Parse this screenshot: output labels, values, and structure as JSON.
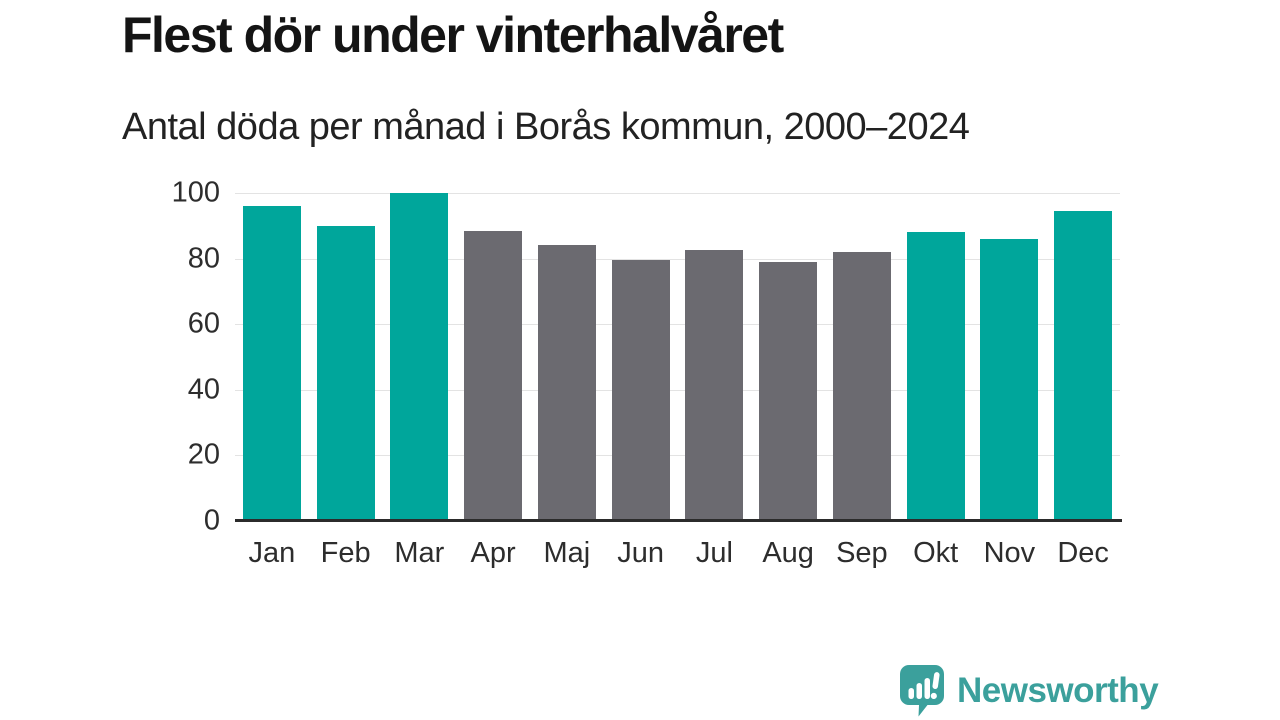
{
  "title": "Flest dör under vinterhalvåret",
  "subtitle": "Antal döda per månad i Borås kommun, 2000–2024",
  "chart_data": {
    "type": "bar",
    "title": "Flest dör under vinterhalvåret",
    "subtitle": "Antal döda per månad i Borås kommun, 2000–2024",
    "categories": [
      "Jan",
      "Feb",
      "Mar",
      "Apr",
      "Maj",
      "Jun",
      "Jul",
      "Aug",
      "Sep",
      "Okt",
      "Nov",
      "Dec"
    ],
    "values": [
      96,
      90,
      100,
      88.5,
      84,
      79.5,
      82.5,
      79,
      82,
      88,
      86,
      94.5
    ],
    "bar_groups": [
      "winter",
      "winter",
      "winter",
      "summer",
      "summer",
      "summer",
      "summer",
      "summer",
      "summer",
      "winter",
      "winter",
      "winter"
    ],
    "colors": {
      "winter": "#00a69b",
      "summer": "#6b6a70"
    },
    "xlabel": "",
    "ylabel": "",
    "ylim": [
      0,
      100
    ],
    "yticks": [
      0,
      20,
      40,
      60,
      80,
      100
    ],
    "grid": true,
    "gridline_color": "#e3e3e3",
    "axis_color": "#2b2b2b",
    "tick_label_color": "#2d2d2d",
    "legend": false,
    "background": "#ffffff"
  },
  "footer": {
    "brand": "Newsworthy",
    "brand_color": "#3ba09c",
    "logo_icon": "newsworthy-speech-bubble-bar-chart-icon"
  }
}
